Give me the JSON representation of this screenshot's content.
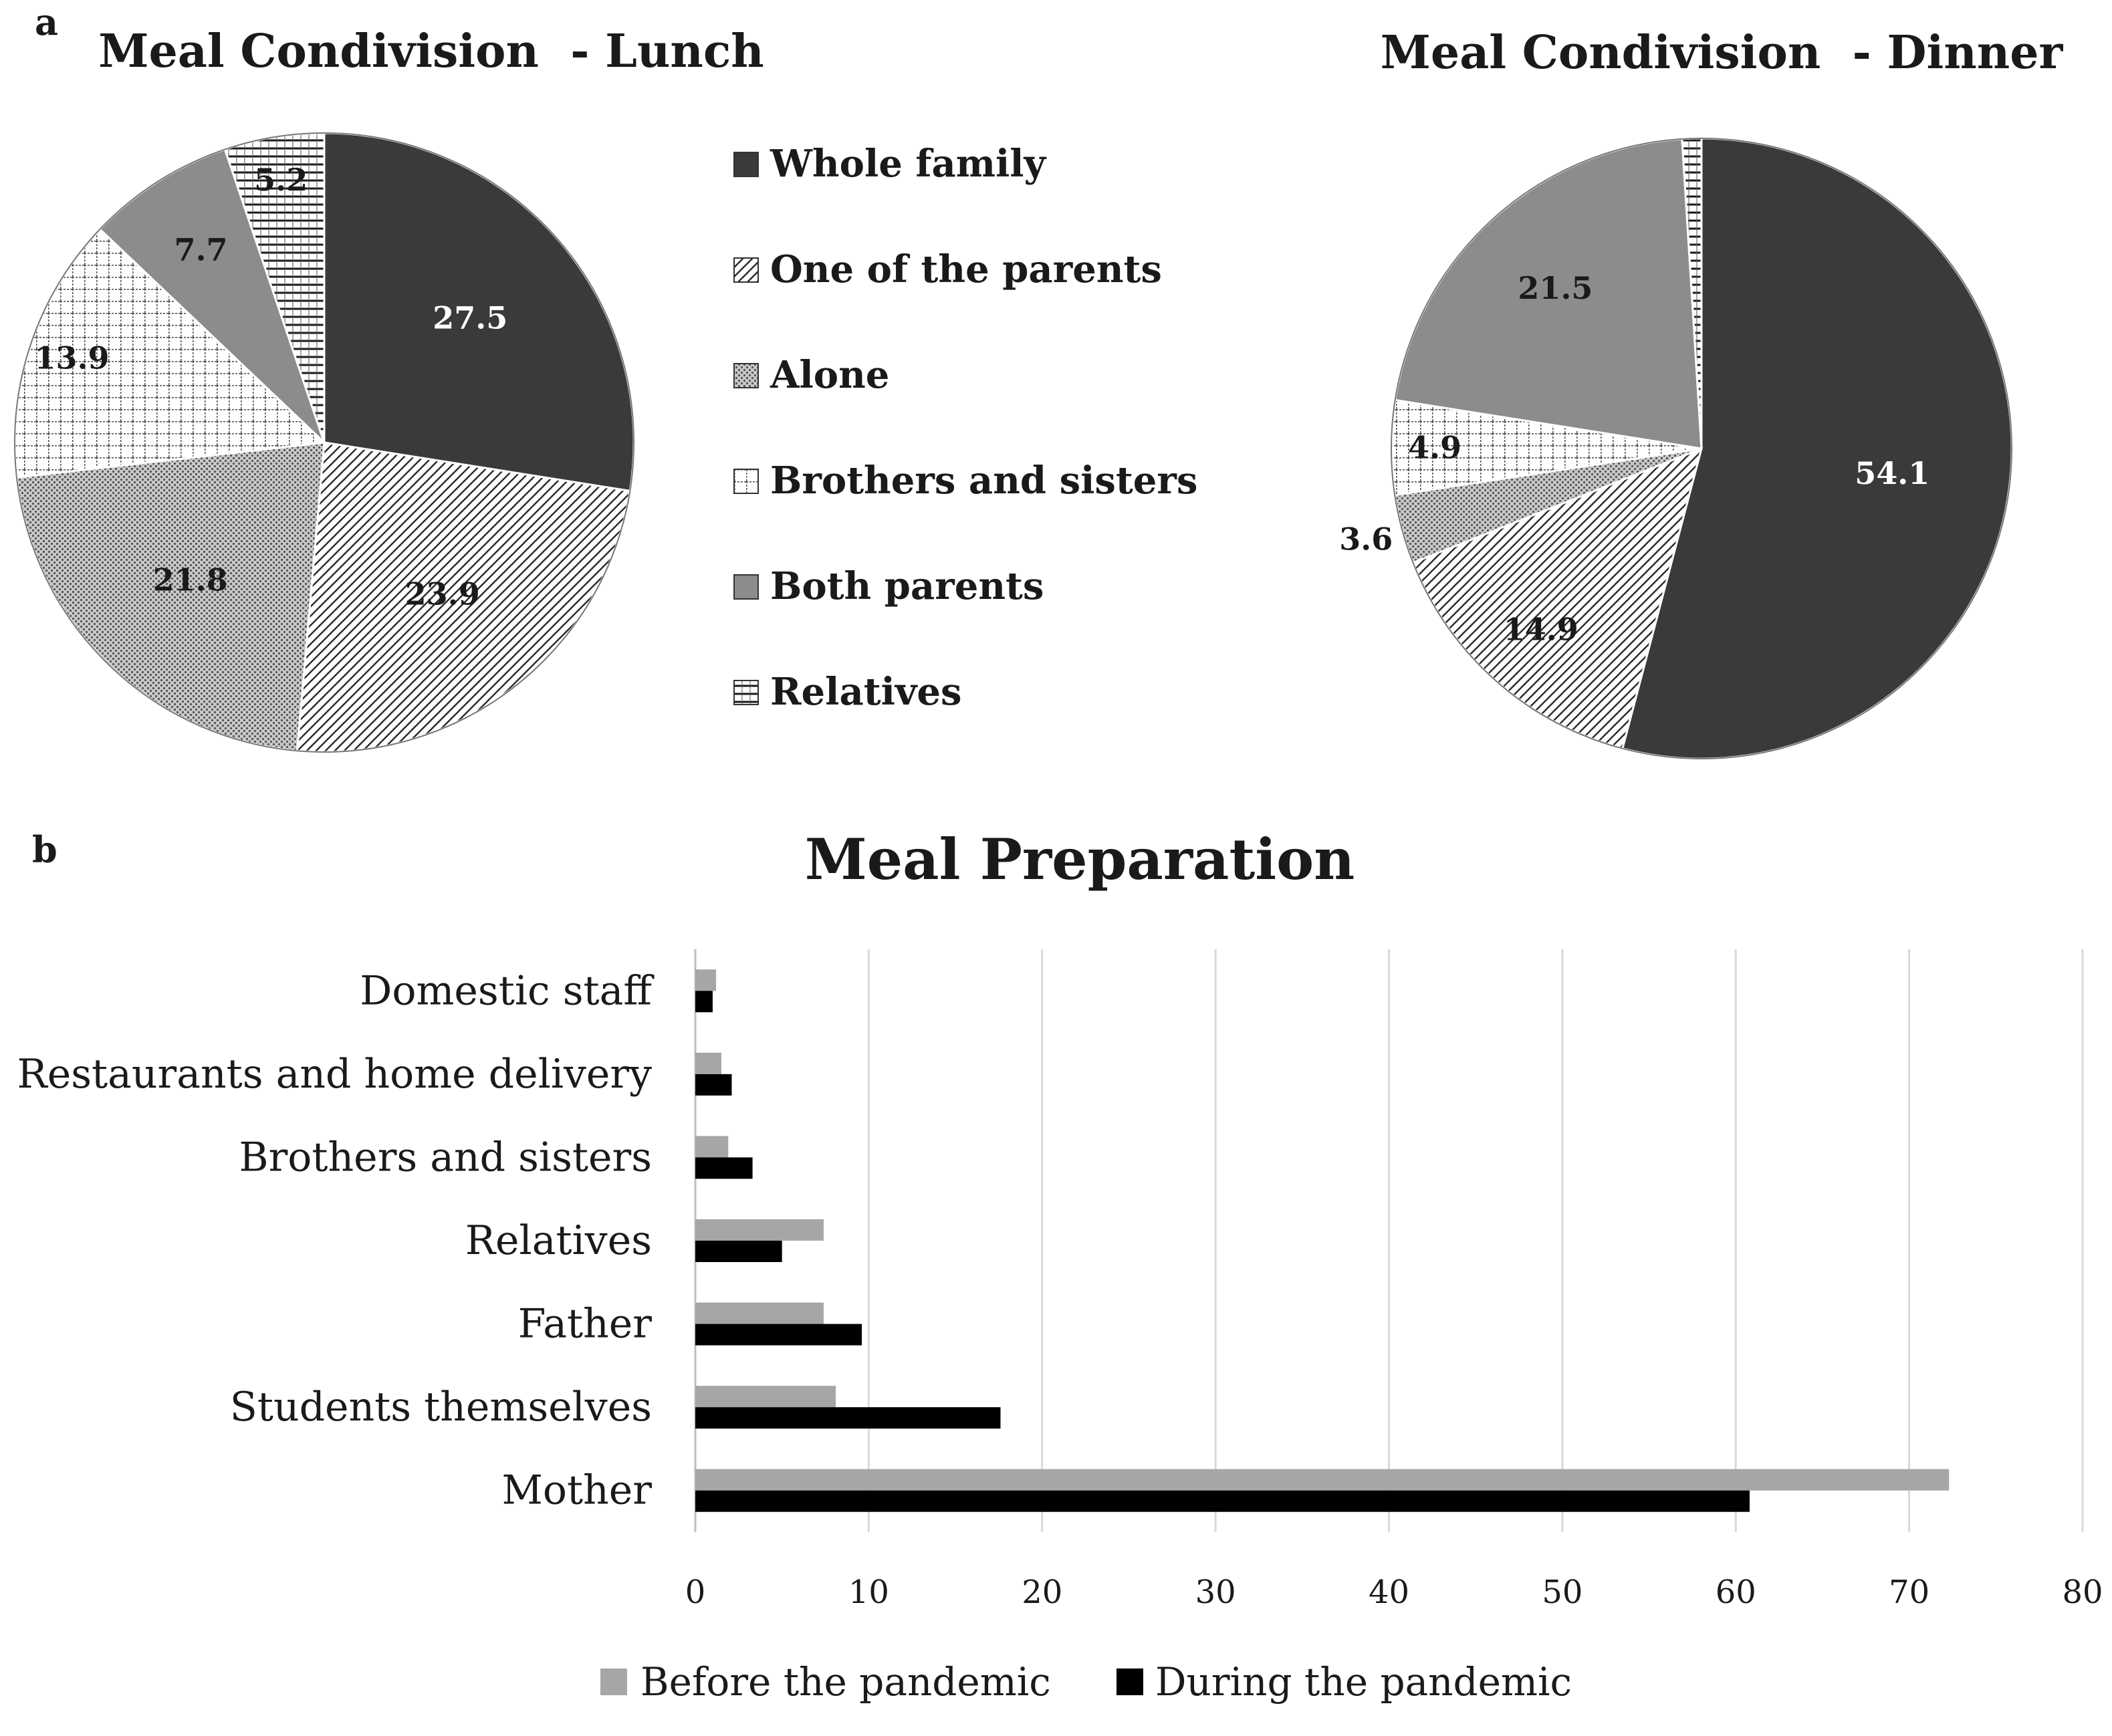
{
  "panels": {
    "a": "a",
    "b": "b"
  },
  "legend_items": [
    {
      "key": "whole",
      "label": "Whole family",
      "fill": "url(#p-solid)"
    },
    {
      "key": "one",
      "label": "One of the parents",
      "fill": "url(#p-diag)"
    },
    {
      "key": "alone",
      "label": "Alone",
      "fill": "url(#p-dots)"
    },
    {
      "key": "bros",
      "label": "Brothers and sisters",
      "fill": "url(#p-grid)"
    },
    {
      "key": "both",
      "label": "Both parents",
      "fill": "url(#p-gray)"
    },
    {
      "key": "rel",
      "label": "Relatives",
      "fill": "url(#p-hlines)"
    }
  ],
  "chart_data": [
    {
      "type": "pie",
      "title": "Meal Condivision  - Lunch",
      "start": "12 o'clock, clockwise",
      "slices": [
        {
          "key": "whole",
          "label": "Whole family",
          "value": 27.5,
          "text": "27.5",
          "text_color": "#ffffff"
        },
        {
          "key": "one",
          "label": "One of the parents",
          "value": 23.9,
          "text": "23.9",
          "text_color": "#1a1a1a"
        },
        {
          "key": "alone",
          "label": "Alone",
          "value": 21.8,
          "text": "21.8",
          "text_color": "#1a1a1a"
        },
        {
          "key": "bros",
          "label": "Brothers and sisters",
          "value": 13.9,
          "text": "13.9",
          "text_color": "#1a1a1a"
        },
        {
          "key": "both",
          "label": "Both parents",
          "value": 7.7,
          "text": "7.7",
          "text_color": "#1a1a1a"
        },
        {
          "key": "rel",
          "label": "Relatives",
          "value": 5.2,
          "text": "5.2",
          "text_color": "#1a1a1a"
        }
      ]
    },
    {
      "type": "pie",
      "title": "Meal Condivision  - Dinner",
      "start": "12 o'clock, clockwise",
      "slices": [
        {
          "key": "whole",
          "label": "Whole family",
          "value": 54.1,
          "text": "54.1",
          "text_color": "#ffffff"
        },
        {
          "key": "one",
          "label": "One of the parents",
          "value": 14.9,
          "text": "14.9",
          "text_color": "#1a1a1a"
        },
        {
          "key": "alone",
          "label": "Alone",
          "value": 3.6,
          "text": "3.6",
          "text_color": "#1a1a1a"
        },
        {
          "key": "bros",
          "label": "Brothers and sisters",
          "value": 4.9,
          "text": "4.9",
          "text_color": "#1a1a1a"
        },
        {
          "key": "both",
          "label": "Both parents",
          "value": 21.5,
          "text": "21.5",
          "text_color": "#1a1a1a"
        },
        {
          "key": "rel",
          "label": "Relatives",
          "value": 1.0,
          "text": "",
          "text_color": "#1a1a1a"
        }
      ]
    },
    {
      "type": "bar",
      "orientation": "horizontal",
      "title": "Meal Preparation",
      "categories": [
        "Domestic staff",
        "Restaurants and home delivery",
        "Brothers and sisters",
        "Relatives",
        "Father",
        "Students themselves",
        "Mother"
      ],
      "series": [
        {
          "name": "Before the pandemic",
          "color": "#a6a6a6",
          "values": [
            1.2,
            1.5,
            1.9,
            7.4,
            7.4,
            8.1,
            72.3
          ]
        },
        {
          "name": "During the pandemic",
          "color": "#000000",
          "values": [
            1.0,
            2.1,
            3.3,
            5.0,
            9.6,
            17.6,
            60.8
          ]
        }
      ],
      "xlim": [
        0,
        80
      ],
      "xticks": [
        0,
        10,
        20,
        30,
        40,
        50,
        60,
        70,
        80
      ],
      "grid": "vertical",
      "legend": "bottom"
    }
  ]
}
